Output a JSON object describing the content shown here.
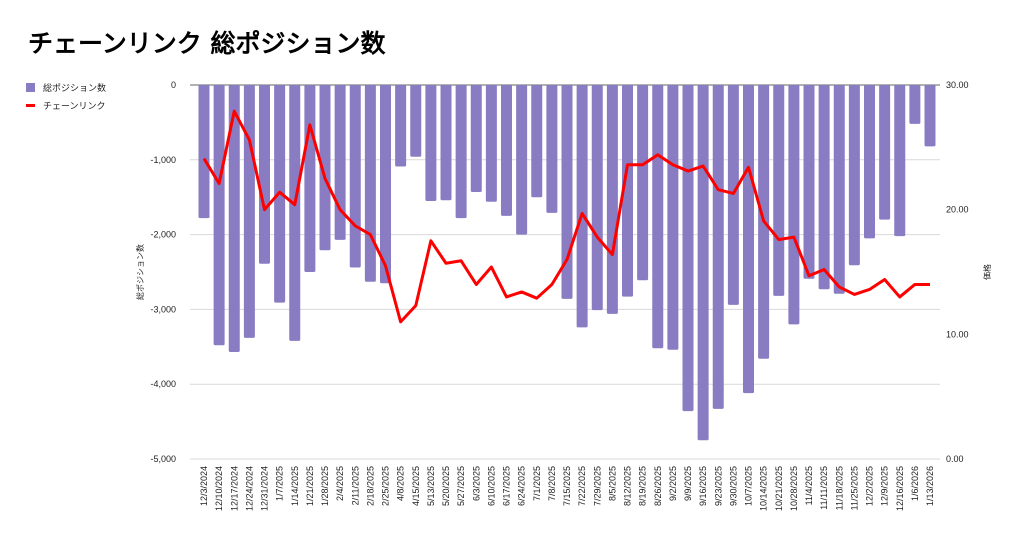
{
  "chart_data": {
    "type": "bar+line",
    "title": "チェーンリンク 総ポジション数",
    "legend_position": "top-left",
    "ylabel_left": "総ポジション数",
    "ylabel_right": "価格",
    "ylim_left": [
      -5000,
      0
    ],
    "ylim_right": [
      0,
      30
    ],
    "yticks_left": [
      "0",
      "-1,000",
      "-2,000",
      "-3,000",
      "-4,000",
      "-5,000"
    ],
    "yticks_right": [
      "30.00",
      "20.00",
      "10.00",
      "0.00"
    ],
    "grid": true,
    "categories": [
      "12/3/2024",
      "12/10/2024",
      "12/17/2024",
      "12/24/2024",
      "12/31/2024",
      "1/7/2025",
      "1/14/2025",
      "1/21/2025",
      "1/28/2025",
      "2/4/2025",
      "2/11/2025",
      "2/18/2025",
      "2/25/2025",
      "4/8/2025",
      "4/15/2025",
      "5/13/2025",
      "5/20/2025",
      "5/27/2025",
      "6/3/2025",
      "6/10/2025",
      "6/17/2025",
      "6/24/2025",
      "7/1/2025",
      "7/8/2025",
      "7/15/2025",
      "7/22/2025",
      "7/29/2025",
      "8/5/2025",
      "8/12/2025",
      "8/19/2025",
      "8/26/2025",
      "9/2/2025",
      "9/9/2025",
      "9/16/2025",
      "9/23/2025",
      "9/30/2025",
      "10/7/2025",
      "10/14/2025",
      "10/21/2025",
      "10/28/2025",
      "11/4/2025",
      "11/11/2025",
      "11/18/2025",
      "11/25/2025",
      "12/2/2025",
      "12/9/2025",
      "12/16/2025",
      "1/6/2026",
      "1/13/2026"
    ],
    "series": [
      {
        "name": "総ポジション数",
        "type": "bar",
        "axis": "left",
        "color": "#8a7cc2",
        "values": [
          -1780,
          -3480,
          -3570,
          -3380,
          -2390,
          -2910,
          -3420,
          -2500,
          -2210,
          -2070,
          -2440,
          -2630,
          -2650,
          -1090,
          -960,
          -1550,
          -1540,
          -1780,
          -1430,
          -1560,
          -1750,
          -2000,
          -1500,
          -1710,
          -2860,
          -3240,
          -3010,
          -3060,
          -2830,
          -2610,
          -3520,
          -3540,
          -4360,
          -4750,
          -4330,
          -2940,
          -4120,
          -3660,
          -2820,
          -3200,
          -2590,
          -2730,
          -2790,
          -2410,
          -2050,
          -1800,
          -2020,
          -520,
          -820
        ]
      },
      {
        "name": "チェーンリンク",
        "type": "line",
        "axis": "right",
        "color": "#ff0000",
        "values": [
          24.1,
          22.1,
          27.9,
          25.6,
          20.0,
          21.4,
          20.4,
          26.8,
          22.5,
          20.0,
          18.7,
          18.0,
          15.5,
          11.0,
          12.3,
          17.5,
          15.7,
          15.9,
          14.0,
          15.4,
          13.0,
          13.4,
          12.9,
          14.0,
          16.0,
          19.7,
          17.8,
          16.4,
          23.6,
          23.6,
          24.4,
          23.6,
          23.1,
          23.5,
          21.6,
          21.3,
          23.4,
          19.1,
          17.6,
          17.8,
          14.7,
          15.2,
          13.8,
          13.2,
          13.6,
          14.4,
          13.0,
          14.0,
          14.0
        ]
      }
    ]
  }
}
